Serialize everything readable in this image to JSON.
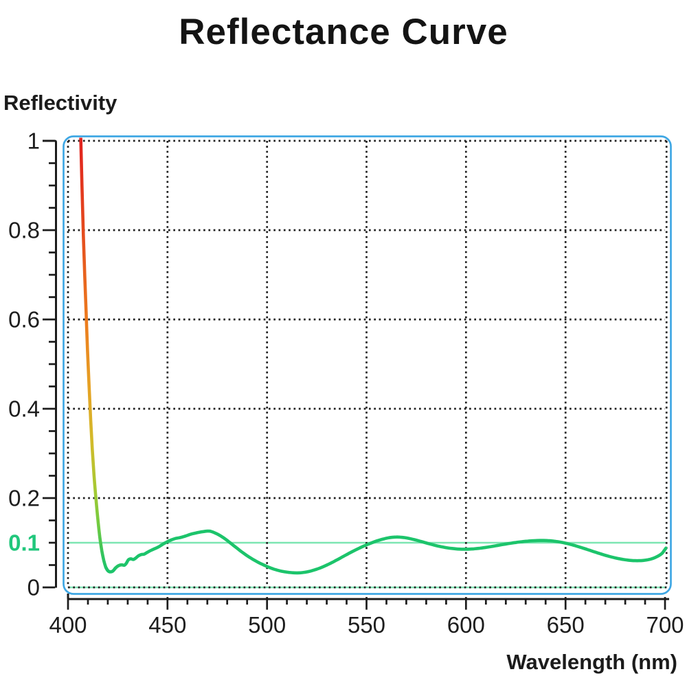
{
  "title": "Reflectance Curve",
  "y_axis_title": "Reflectivity",
  "x_axis_title": "Wavelength (nm)",
  "colors": {
    "text": "#1b1b1b",
    "axis": "#1c1c1c",
    "grid": "#1f1f1f",
    "frame": "#3fa7e4",
    "reference_line": "#7de6b2",
    "baseline": "#85e7b8",
    "highlight_label": "#21c77c",
    "curve": "#1cc46b",
    "curve_gradient": [
      {
        "offset": 0.0,
        "color": "#e1221f"
      },
      {
        "offset": 0.21,
        "color": "#e44a1e"
      },
      {
        "offset": 0.42,
        "color": "#ec7b1e"
      },
      {
        "offset": 0.57,
        "color": "#e6a124"
      },
      {
        "offset": 0.7,
        "color": "#d2bb2b"
      },
      {
        "offset": 0.81,
        "color": "#a6c933"
      },
      {
        "offset": 0.89,
        "color": "#72cb40"
      },
      {
        "offset": 0.96,
        "color": "#33c45f"
      },
      {
        "offset": 1.0,
        "color": "#1cc46b"
      }
    ]
  },
  "chart_data": {
    "type": "line",
    "title": "Reflectance Curve",
    "xlabel": "Wavelength (nm)",
    "ylabel": "Reflectivity",
    "xlim": [
      400,
      700
    ],
    "ylim": [
      0,
      1
    ],
    "grid": "dotted",
    "x_major_ticks": [
      400,
      450,
      500,
      550,
      600,
      650,
      700
    ],
    "x_tick_labels": [
      "400",
      "450",
      "500",
      "550",
      "600",
      "650",
      "700"
    ],
    "x_minor_tick_step": 10,
    "y_major_ticks": [
      1,
      0.8,
      0.6,
      0.4,
      0.2,
      0
    ],
    "y_tick_labels": [
      "1",
      "0.8",
      "0.6",
      "0.4",
      "0.2",
      "0"
    ],
    "y_minor_tick_step": 0.05,
    "y_highlight_tick": {
      "value": 0.1,
      "label": "0.1"
    },
    "reference_line_y": 0.1,
    "series": [
      {
        "name": "reflectance",
        "points": [
          [
            406.3,
            1.03
          ],
          [
            407,
            0.9
          ],
          [
            407.7,
            0.79
          ],
          [
            408.4,
            0.7
          ],
          [
            409.1,
            0.615
          ],
          [
            409.8,
            0.53
          ],
          [
            410.6,
            0.45
          ],
          [
            411.4,
            0.375
          ],
          [
            412.2,
            0.31
          ],
          [
            413.1,
            0.25
          ],
          [
            414,
            0.2
          ],
          [
            415,
            0.152
          ],
          [
            416,
            0.112
          ],
          [
            417,
            0.082
          ],
          [
            418,
            0.06
          ],
          [
            419,
            0.045
          ],
          [
            420,
            0.0375
          ],
          [
            421,
            0.035
          ],
          [
            422.5,
            0.0365
          ],
          [
            424,
            0.044
          ],
          [
            425.5,
            0.049
          ],
          [
            427,
            0.0505
          ],
          [
            428.3,
            0.0495
          ],
          [
            429.3,
            0.054
          ],
          [
            430.3,
            0.0615
          ],
          [
            431.5,
            0.064
          ],
          [
            432.8,
            0.0625
          ],
          [
            434,
            0.0655
          ],
          [
            435.3,
            0.0705
          ],
          [
            436.8,
            0.0735
          ],
          [
            438.3,
            0.0745
          ],
          [
            440,
            0.079
          ],
          [
            442,
            0.0835
          ],
          [
            444,
            0.0875
          ],
          [
            446,
            0.092
          ],
          [
            448,
            0.0975
          ],
          [
            450,
            0.1025
          ],
          [
            452,
            0.1065
          ],
          [
            454,
            0.1095
          ],
          [
            456,
            0.1112
          ],
          [
            458,
            0.1135
          ],
          [
            460,
            0.1165
          ],
          [
            462,
            0.1195
          ],
          [
            464,
            0.1215
          ],
          [
            466,
            0.1235
          ],
          [
            468,
            0.125
          ],
          [
            470,
            0.126
          ],
          [
            471.5,
            0.1258
          ],
          [
            473,
            0.1235
          ],
          [
            475,
            0.1195
          ],
          [
            477,
            0.1145
          ],
          [
            479,
            0.1085
          ],
          [
            481,
            0.1015
          ],
          [
            483,
            0.0945
          ],
          [
            485,
            0.0875
          ],
          [
            487,
            0.0805
          ],
          [
            489,
            0.074
          ],
          [
            491,
            0.068
          ],
          [
            493,
            0.0625
          ],
          [
            495,
            0.0575
          ],
          [
            497,
            0.053
          ],
          [
            499,
            0.0488
          ],
          [
            501,
            0.045
          ],
          [
            503,
            0.0415
          ],
          [
            505,
            0.0388
          ],
          [
            507,
            0.0365
          ],
          [
            509,
            0.0348
          ],
          [
            511,
            0.0336
          ],
          [
            513,
            0.0328
          ],
          [
            515,
            0.0325
          ],
          [
            517,
            0.0328
          ],
          [
            519,
            0.0338
          ],
          [
            521,
            0.0355
          ],
          [
            523,
            0.038
          ],
          [
            525,
            0.0408
          ],
          [
            527,
            0.044
          ],
          [
            529,
            0.0478
          ],
          [
            531,
            0.052
          ],
          [
            533,
            0.0565
          ],
          [
            535,
            0.0612
          ],
          [
            537,
            0.066
          ],
          [
            539,
            0.071
          ],
          [
            541,
            0.0758
          ],
          [
            543,
            0.0805
          ],
          [
            545,
            0.085
          ],
          [
            547,
            0.0893
          ],
          [
            549,
            0.0933
          ],
          [
            551,
            0.097
          ],
          [
            553,
            0.1005
          ],
          [
            555,
            0.1038
          ],
          [
            557,
            0.1066
          ],
          [
            559,
            0.109
          ],
          [
            561,
            0.111
          ],
          [
            563,
            0.1122
          ],
          [
            565,
            0.1128
          ],
          [
            567,
            0.1125
          ],
          [
            569,
            0.1115
          ],
          [
            571,
            0.11
          ],
          [
            573,
            0.108
          ],
          [
            575,
            0.1058
          ],
          [
            577,
            0.1033
          ],
          [
            579,
            0.1008
          ],
          [
            581,
            0.0982
          ],
          [
            583,
            0.0958
          ],
          [
            585,
            0.0935
          ],
          [
            587,
            0.0915
          ],
          [
            589,
            0.0898
          ],
          [
            591,
            0.0883
          ],
          [
            593,
            0.0872
          ],
          [
            595,
            0.0863
          ],
          [
            597,
            0.0857
          ],
          [
            599,
            0.0855
          ],
          [
            601,
            0.0856
          ],
          [
            603,
            0.086
          ],
          [
            605,
            0.0867
          ],
          [
            607,
            0.0877
          ],
          [
            609,
            0.0889
          ],
          [
            611,
            0.0902
          ],
          [
            613,
            0.0917
          ],
          [
            615,
            0.0932
          ],
          [
            617,
            0.0948
          ],
          [
            619,
            0.0963
          ],
          [
            621,
            0.0978
          ],
          [
            623,
            0.0992
          ],
          [
            625,
            0.1005
          ],
          [
            627,
            0.1017
          ],
          [
            629,
            0.1027
          ],
          [
            631,
            0.1036
          ],
          [
            633,
            0.1043
          ],
          [
            635,
            0.1048
          ],
          [
            637,
            0.1051
          ],
          [
            639,
            0.1051
          ],
          [
            641,
            0.1048
          ],
          [
            643,
            0.1041
          ],
          [
            645,
            0.1031
          ],
          [
            647,
            0.1017
          ],
          [
            649,
            0.1
          ],
          [
            651,
            0.098
          ],
          [
            653,
            0.0957
          ],
          [
            655,
            0.0932
          ],
          [
            657,
            0.0905
          ],
          [
            659,
            0.0877
          ],
          [
            661,
            0.0848
          ],
          [
            663,
            0.0818
          ],
          [
            665,
            0.0789
          ],
          [
            667,
            0.076
          ],
          [
            669,
            0.0732
          ],
          [
            671,
            0.0706
          ],
          [
            673,
            0.0682
          ],
          [
            675,
            0.066
          ],
          [
            677,
            0.0641
          ],
          [
            679,
            0.0625
          ],
          [
            681,
            0.0612
          ],
          [
            683,
            0.0603
          ],
          [
            685,
            0.0598
          ],
          [
            687,
            0.0598
          ],
          [
            689,
            0.0603
          ],
          [
            691,
            0.0615
          ],
          [
            693,
            0.0636
          ],
          [
            695,
            0.0668
          ],
          [
            697,
            0.0714
          ],
          [
            698.5,
            0.0763
          ],
          [
            699.5,
            0.082
          ],
          [
            700.5,
            0.088
          ]
        ]
      }
    ]
  }
}
